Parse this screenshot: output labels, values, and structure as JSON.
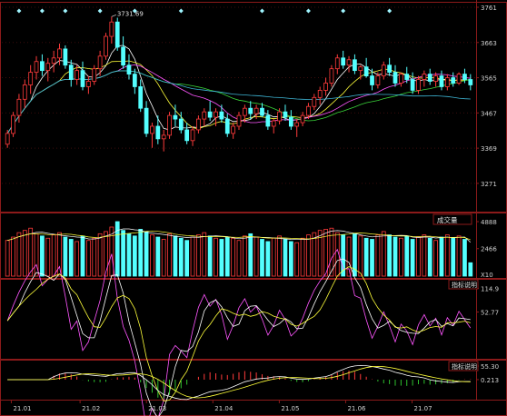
{
  "chart_data": [
    {
      "type": "candlestick",
      "panel": "price",
      "y_ticks": [
        "3761",
        "3663",
        "3565",
        "3467",
        "3369",
        "3271"
      ],
      "ylim": [
        3200,
        3761
      ],
      "peak_label": "3731.69",
      "colors": {
        "up": "#ff3b3b",
        "down": "#54ffff",
        "ma1": "#ffffff",
        "ma2": "#ffff3a",
        "ma3": "#ff55ff",
        "ma4": "#3ad63a",
        "ma5": "#3fb8d8"
      },
      "ohlc": [
        [
          3380,
          3420,
          3370,
          3410
        ],
        [
          3410,
          3470,
          3400,
          3460
        ],
        [
          3460,
          3520,
          3440,
          3505
        ],
        [
          3505,
          3560,
          3480,
          3545
        ],
        [
          3545,
          3600,
          3520,
          3580
        ],
        [
          3580,
          3625,
          3560,
          3610
        ],
        [
          3610,
          3630,
          3570,
          3585
        ],
        [
          3585,
          3620,
          3555,
          3605
        ],
        [
          3605,
          3640,
          3580,
          3620
        ],
        [
          3620,
          3660,
          3600,
          3645
        ],
        [
          3645,
          3655,
          3590,
          3600
        ],
        [
          3600,
          3615,
          3540,
          3560
        ],
        [
          3560,
          3600,
          3545,
          3585
        ],
        [
          3585,
          3610,
          3530,
          3540
        ],
        [
          3540,
          3570,
          3520,
          3555
        ],
        [
          3555,
          3600,
          3545,
          3590
        ],
        [
          3590,
          3640,
          3570,
          3625
        ],
        [
          3625,
          3690,
          3615,
          3680
        ],
        [
          3680,
          3735,
          3660,
          3720
        ],
        [
          3720,
          3732,
          3640,
          3650
        ],
        [
          3650,
          3680,
          3590,
          3600
        ],
        [
          3600,
          3630,
          3560,
          3575
        ],
        [
          3575,
          3590,
          3520,
          3540
        ],
        [
          3540,
          3560,
          3470,
          3480
        ],
        [
          3480,
          3500,
          3400,
          3410
        ],
        [
          3410,
          3440,
          3370,
          3430
        ],
        [
          3430,
          3460,
          3380,
          3395
        ],
        [
          3395,
          3420,
          3360,
          3405
        ],
        [
          3405,
          3470,
          3395,
          3460
        ],
        [
          3460,
          3490,
          3430,
          3450
        ],
        [
          3450,
          3470,
          3410,
          3420
        ],
        [
          3420,
          3440,
          3380,
          3390
        ],
        [
          3390,
          3430,
          3375,
          3420
        ],
        [
          3420,
          3460,
          3410,
          3450
        ],
        [
          3450,
          3480,
          3430,
          3470
        ],
        [
          3470,
          3500,
          3445,
          3455
        ],
        [
          3455,
          3480,
          3430,
          3470
        ],
        [
          3470,
          3490,
          3440,
          3450
        ],
        [
          3450,
          3465,
          3400,
          3410
        ],
        [
          3410,
          3440,
          3395,
          3430
        ],
        [
          3430,
          3470,
          3420,
          3460
        ],
        [
          3460,
          3490,
          3440,
          3480
        ],
        [
          3480,
          3500,
          3450,
          3465
        ],
        [
          3465,
          3490,
          3450,
          3480
        ],
        [
          3480,
          3495,
          3455,
          3460
        ],
        [
          3460,
          3475,
          3420,
          3430
        ],
        [
          3430,
          3450,
          3410,
          3445
        ],
        [
          3445,
          3480,
          3435,
          3470
        ],
        [
          3470,
          3490,
          3445,
          3455
        ],
        [
          3455,
          3475,
          3420,
          3430
        ],
        [
          3430,
          3450,
          3400,
          3440
        ],
        [
          3440,
          3470,
          3430,
          3460
        ],
        [
          3460,
          3495,
          3450,
          3485
        ],
        [
          3485,
          3520,
          3475,
          3510
        ],
        [
          3510,
          3540,
          3490,
          3530
        ],
        [
          3530,
          3565,
          3515,
          3550
        ],
        [
          3550,
          3600,
          3540,
          3590
        ],
        [
          3590,
          3630,
          3575,
          3620
        ],
        [
          3620,
          3640,
          3590,
          3600
        ],
        [
          3600,
          3625,
          3580,
          3615
        ],
        [
          3615,
          3630,
          3575,
          3585
        ],
        [
          3585,
          3600,
          3560,
          3595
        ],
        [
          3595,
          3620,
          3565,
          3570
        ],
        [
          3570,
          3590,
          3530,
          3545
        ],
        [
          3545,
          3580,
          3535,
          3570
        ],
        [
          3570,
          3610,
          3560,
          3600
        ],
        [
          3600,
          3620,
          3570,
          3580
        ],
        [
          3580,
          3600,
          3540,
          3550
        ],
        [
          3550,
          3580,
          3540,
          3575
        ],
        [
          3575,
          3595,
          3550,
          3560
        ],
        [
          3560,
          3580,
          3520,
          3530
        ],
        [
          3530,
          3570,
          3520,
          3560
        ],
        [
          3560,
          3585,
          3540,
          3575
        ],
        [
          3575,
          3590,
          3545,
          3555
        ],
        [
          3555,
          3580,
          3540,
          3570
        ],
        [
          3570,
          3585,
          3530,
          3540
        ],
        [
          3540,
          3575,
          3530,
          3565
        ],
        [
          3565,
          3580,
          3540,
          3550
        ],
        [
          3550,
          3580,
          3545,
          3575
        ],
        [
          3575,
          3590,
          3550,
          3560
        ],
        [
          3560,
          3575,
          3530,
          3545
        ]
      ],
      "markers": [
        2,
        6,
        10,
        16,
        22,
        30,
        44,
        52,
        58,
        66
      ]
    },
    {
      "type": "bar",
      "panel": "volume",
      "legend_label": "成交量",
      "y_ticks": [
        "4888",
        "2466"
      ],
      "unit_label": "X10",
      "ylim": [
        0,
        4888
      ],
      "values": [
        3200,
        3500,
        3900,
        4100,
        4300,
        3800,
        3600,
        3400,
        3700,
        3900,
        3500,
        3300,
        3100,
        3600,
        3200,
        3400,
        3800,
        4000,
        4400,
        4888,
        4100,
        3800,
        3600,
        4200,
        4000,
        3700,
        3500,
        3300,
        3800,
        3600,
        3400,
        3200,
        3500,
        3700,
        3900,
        3600,
        3400,
        3300,
        3500,
        3400,
        3200,
        3600,
        3800,
        3500,
        3300,
        3100,
        3400,
        3600,
        3300,
        3100,
        3000,
        3400,
        3700,
        3900,
        4100,
        4200,
        4300,
        3900,
        3700,
        3500,
        3800,
        3600,
        3400,
        3300,
        3700,
        4000,
        3700,
        3500,
        3400,
        3600,
        3300,
        3500,
        3700,
        3400,
        3200,
        3500,
        3700,
        3400,
        3600,
        3300,
        1200
      ]
    },
    {
      "type": "line",
      "panel": "indicator-1",
      "legend_label": "指标说明",
      "y_ticks": [
        "114.9",
        "52.77"
      ],
      "ylim": [
        -60,
        130
      ],
      "period": 11
    },
    {
      "type": "bar",
      "panel": "indicator-2",
      "legend_label": "指标说明",
      "y_ticks": [
        "55.30",
        "0.213"
      ],
      "ylim": [
        -70,
        70
      ],
      "period": 23
    }
  ],
  "x_ticks": [
    "21.01",
    "21.02",
    "21.03",
    "21.04",
    "21.05",
    "21.06",
    "21.07"
  ]
}
